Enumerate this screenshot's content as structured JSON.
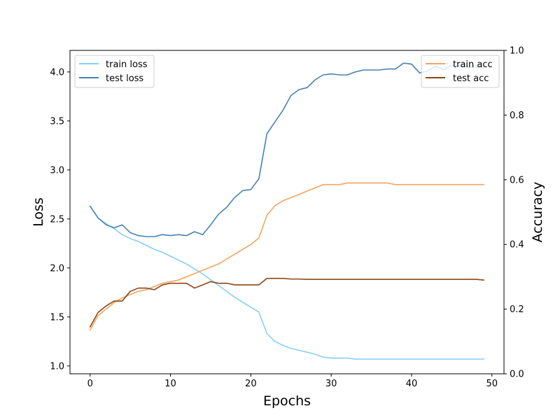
{
  "chart_data": {
    "type": "line",
    "title": "",
    "xlabel": "Epochs",
    "ylabel_left": "Loss",
    "ylabel_right": "Accuracy",
    "xlim": [
      -2.5,
      51.5
    ],
    "ylim_left": [
      0.92,
      4.22
    ],
    "ylim_right": [
      0.0,
      1.0
    ],
    "xticks": [
      0,
      10,
      20,
      30,
      40,
      50
    ],
    "yticks_left": [
      "1.0",
      "1.5",
      "2.0",
      "2.5",
      "3.0",
      "3.5",
      "4.0"
    ],
    "yticks_right": [
      "0.0",
      "0.2",
      "0.4",
      "0.6",
      "0.8",
      "1.0"
    ],
    "grid": false,
    "legend_left_placement": "top-left",
    "legend_right_placement": "top-right",
    "x": [
      0,
      1,
      2,
      3,
      4,
      5,
      6,
      7,
      8,
      9,
      10,
      11,
      12,
      13,
      14,
      15,
      16,
      17,
      18,
      19,
      20,
      21,
      22,
      23,
      24,
      25,
      26,
      27,
      28,
      29,
      30,
      31,
      32,
      33,
      34,
      35,
      36,
      37,
      38,
      39,
      40,
      41,
      42,
      43,
      44,
      45,
      46,
      47,
      48,
      49
    ],
    "series": [
      {
        "name": "train loss",
        "axis": "left",
        "color": "#87cefa",
        "values": [
          2.63,
          2.51,
          2.45,
          2.4,
          2.34,
          2.3,
          2.27,
          2.23,
          2.19,
          2.16,
          2.12,
          2.08,
          2.04,
          1.99,
          1.94,
          1.88,
          1.82,
          1.76,
          1.7,
          1.65,
          1.6,
          1.55,
          1.33,
          1.25,
          1.21,
          1.18,
          1.16,
          1.14,
          1.12,
          1.09,
          1.08,
          1.08,
          1.08,
          1.07,
          1.07,
          1.07,
          1.07,
          1.07,
          1.07,
          1.07,
          1.07,
          1.07,
          1.07,
          1.07,
          1.07,
          1.07,
          1.07,
          1.07,
          1.07,
          1.07
        ]
      },
      {
        "name": "test loss",
        "axis": "left",
        "color": "#4682b4",
        "values": [
          2.63,
          2.51,
          2.44,
          2.41,
          2.44,
          2.36,
          2.33,
          2.32,
          2.32,
          2.34,
          2.33,
          2.34,
          2.33,
          2.37,
          2.34,
          2.44,
          2.55,
          2.62,
          2.72,
          2.79,
          2.8,
          2.91,
          3.37,
          3.49,
          3.61,
          3.76,
          3.82,
          3.84,
          3.92,
          3.97,
          3.98,
          3.97,
          3.97,
          4.0,
          4.02,
          4.02,
          4.02,
          4.03,
          4.03,
          4.09,
          4.08,
          3.99,
          4.01,
          4.06,
          4.02,
          4.07,
          4.06,
          4.05,
          4.05,
          4.05
        ]
      },
      {
        "name": "train acc",
        "axis": "right",
        "color": "#f4a460",
        "values": [
          0.135,
          0.18,
          0.2,
          0.22,
          0.235,
          0.245,
          0.255,
          0.26,
          0.27,
          0.28,
          0.285,
          0.29,
          0.3,
          0.31,
          0.32,
          0.33,
          0.34,
          0.355,
          0.37,
          0.385,
          0.4,
          0.42,
          0.49,
          0.52,
          0.535,
          0.545,
          0.555,
          0.565,
          0.575,
          0.585,
          0.585,
          0.585,
          0.59,
          0.59,
          0.59,
          0.59,
          0.59,
          0.59,
          0.585,
          0.585,
          0.585,
          0.585,
          0.585,
          0.585,
          0.585,
          0.585,
          0.585,
          0.585,
          0.585,
          0.585
        ]
      },
      {
        "name": "test acc",
        "axis": "right",
        "color": "#8b4513",
        "values": [
          0.145,
          0.19,
          0.21,
          0.225,
          0.225,
          0.255,
          0.265,
          0.265,
          0.26,
          0.275,
          0.28,
          0.28,
          0.28,
          0.265,
          0.275,
          0.285,
          0.28,
          0.28,
          0.275,
          0.275,
          0.275,
          0.275,
          0.295,
          0.295,
          0.295,
          0.293,
          0.293,
          0.292,
          0.292,
          0.292,
          0.292,
          0.292,
          0.292,
          0.292,
          0.292,
          0.292,
          0.292,
          0.292,
          0.292,
          0.292,
          0.292,
          0.292,
          0.292,
          0.292,
          0.292,
          0.292,
          0.292,
          0.292,
          0.292,
          0.29
        ]
      }
    ]
  }
}
